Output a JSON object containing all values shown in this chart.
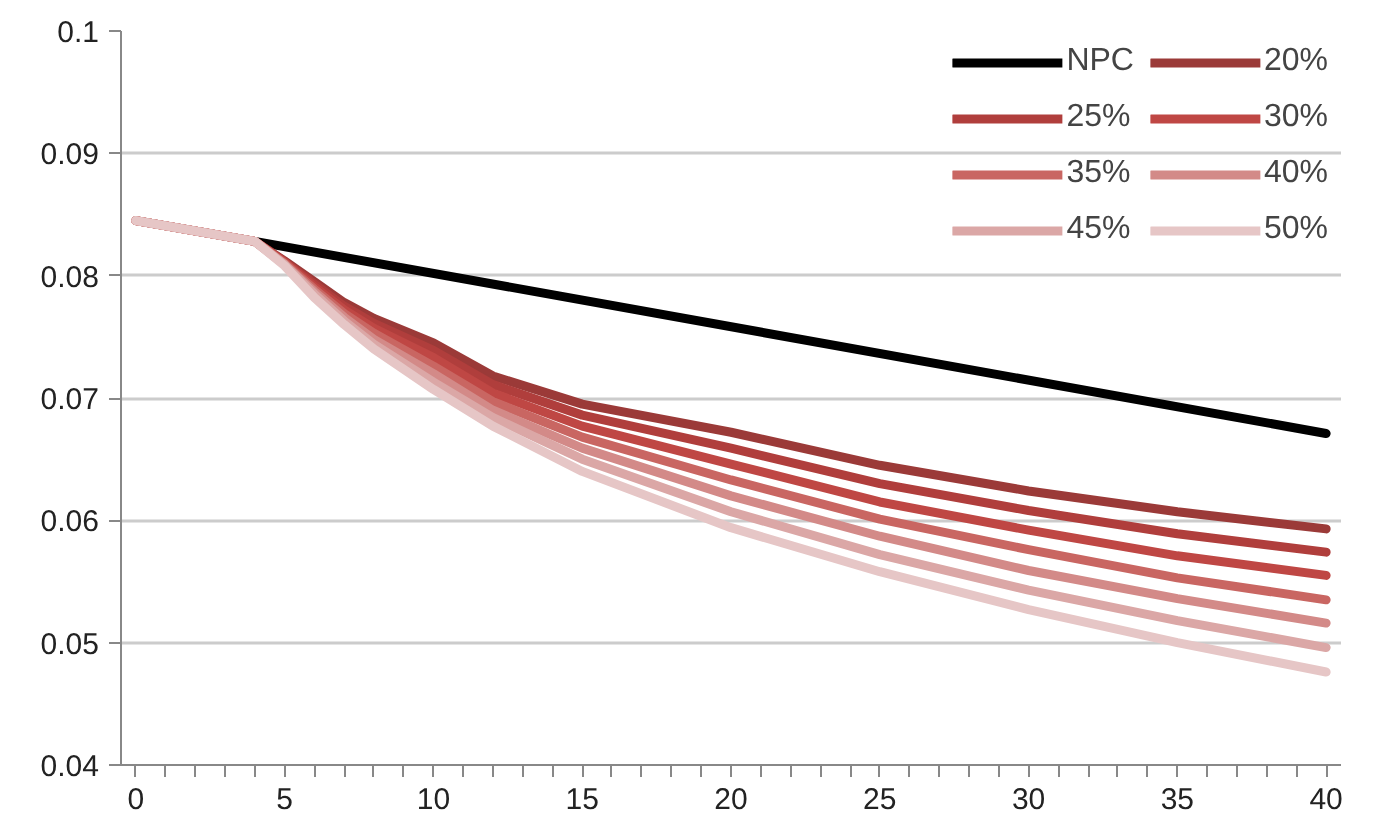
{
  "chart_data": {
    "type": "line",
    "xlim": [
      -0.5,
      40.5
    ],
    "ylim": [
      0.04,
      0.1
    ],
    "yticks": [
      0.04,
      0.05,
      0.06,
      0.07,
      0.08,
      0.09,
      0.1
    ],
    "xticks": [
      0,
      {
        "value": 1,
        "label": null
      },
      {
        "value": 2,
        "label": null
      },
      {
        "value": 3,
        "label": null
      },
      {
        "value": 4,
        "label": null
      },
      5,
      {
        "value": 6,
        "label": null
      },
      {
        "value": 7,
        "label": null
      },
      {
        "value": 8,
        "label": null
      },
      {
        "value": 9,
        "label": null
      },
      10,
      {
        "value": 11,
        "label": null
      },
      {
        "value": 12,
        "label": null
      },
      {
        "value": 13,
        "label": null
      },
      {
        "value": 14,
        "label": null
      },
      15,
      {
        "value": 16,
        "label": null
      },
      {
        "value": 17,
        "label": null
      },
      {
        "value": 18,
        "label": null
      },
      {
        "value": 19,
        "label": null
      },
      20,
      {
        "value": 21,
        "label": null
      },
      {
        "value": 22,
        "label": null
      },
      {
        "value": 23,
        "label": null
      },
      {
        "value": 24,
        "label": null
      },
      25,
      {
        "value": 26,
        "label": null
      },
      {
        "value": 27,
        "label": null
      },
      {
        "value": 28,
        "label": null
      },
      {
        "value": 29,
        "label": null
      },
      30,
      {
        "value": 31,
        "label": null
      },
      {
        "value": 32,
        "label": null
      },
      {
        "value": 33,
        "label": null
      },
      {
        "value": 34,
        "label": null
      },
      35,
      {
        "value": 36,
        "label": null
      },
      {
        "value": 37,
        "label": null
      },
      {
        "value": 38,
        "label": null
      },
      {
        "value": 39,
        "label": null
      },
      40
    ],
    "x": [
      0,
      4,
      5,
      6,
      7,
      8,
      10,
      12,
      15,
      20,
      25,
      30,
      35,
      40
    ],
    "grid": "y",
    "legend": "top right",
    "marker": "none",
    "line_style": "solid",
    "series": [
      {
        "name": "NPC",
        "color": "#000000",
        "x": [
          4,
          40
        ],
        "values": [
          0.0828,
          0.0671
        ]
      },
      {
        "name": "20%",
        "color": "#9b3a38",
        "values": [
          0.0845,
          0.0828,
          0.0812,
          0.0795,
          0.0778,
          0.0765,
          0.0745,
          0.0718,
          0.0695,
          0.0672,
          0.0645,
          0.0624,
          0.0607,
          0.0593
        ]
      },
      {
        "name": "25%",
        "color": "#b03e3c",
        "values": [
          0.0845,
          0.0828,
          0.0811,
          0.0793,
          0.0775,
          0.0761,
          0.0739,
          0.0711,
          0.0686,
          0.0659,
          0.063,
          0.0608,
          0.0589,
          0.0574
        ]
      },
      {
        "name": "30%",
        "color": "#bf4744",
        "values": [
          0.0845,
          0.0828,
          0.0811,
          0.0791,
          0.0772,
          0.0757,
          0.0733,
          0.0704,
          0.0677,
          0.0646,
          0.0615,
          0.0592,
          0.0571,
          0.0555
        ]
      },
      {
        "name": "35%",
        "color": "#c96662",
        "values": [
          0.0845,
          0.0828,
          0.081,
          0.0789,
          0.0769,
          0.0753,
          0.0726,
          0.0697,
          0.0668,
          0.0633,
          0.0601,
          0.0576,
          0.0553,
          0.0535
        ]
      },
      {
        "name": "40%",
        "color": "#d38a88",
        "values": [
          0.0845,
          0.0828,
          0.0809,
          0.0787,
          0.0766,
          0.0748,
          0.072,
          0.069,
          0.0659,
          0.062,
          0.0587,
          0.0559,
          0.0536,
          0.0516
        ]
      },
      {
        "name": "45%",
        "color": "#dba7a6",
        "values": [
          0.0845,
          0.0828,
          0.0809,
          0.0785,
          0.0763,
          0.0744,
          0.0713,
          0.0684,
          0.065,
          0.0607,
          0.0572,
          0.0543,
          0.0518,
          0.0496
        ]
      },
      {
        "name": "50%",
        "color": "#e6c6c6",
        "values": [
          0.0845,
          0.0828,
          0.0808,
          0.0782,
          0.076,
          0.074,
          0.0707,
          0.0677,
          0.064,
          0.0594,
          0.0558,
          0.0527,
          0.05,
          0.0476
        ]
      }
    ]
  }
}
